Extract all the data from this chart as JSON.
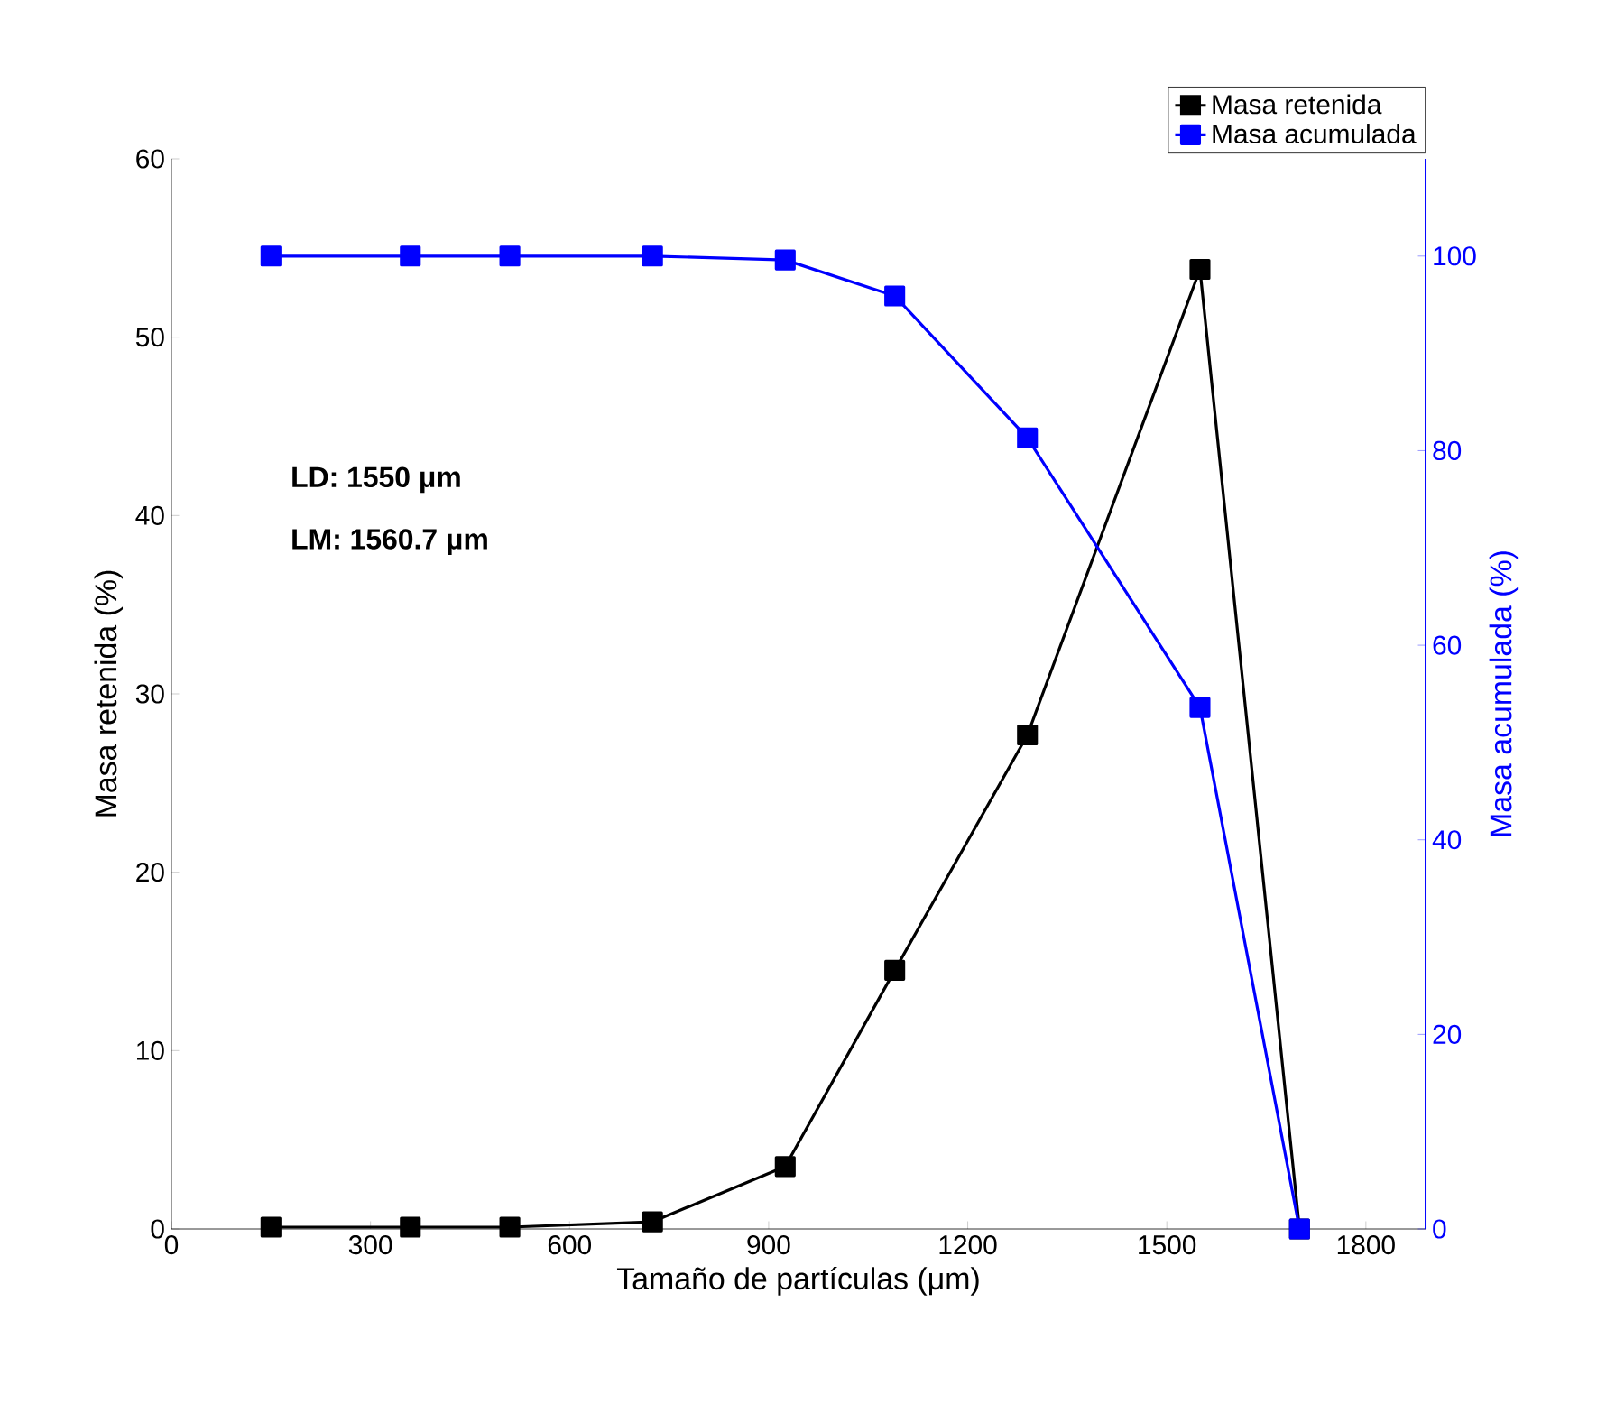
{
  "chart_data": {
    "type": "line",
    "xlabel": "Tamaño de partículas (μm)",
    "ylabel": "Masa retenida (%)",
    "y2label": "Masa acumulada (%)",
    "x": [
      150,
      360,
      510,
      725,
      925,
      1090,
      1290,
      1550,
      1700
    ],
    "series": [
      {
        "name": "Masa retenida",
        "color": "#000000",
        "values": [
          0.1,
          0.1,
          0.1,
          0.4,
          3.5,
          14.5,
          27.7,
          53.8,
          0
        ]
      },
      {
        "name": "Masa acumulada",
        "color": "#0000ff",
        "axis": "y2",
        "values": [
          100,
          100,
          100,
          100,
          99.6,
          95.9,
          81.3,
          53.6,
          0
        ]
      }
    ],
    "xlim": [
      0,
      1890
    ],
    "xticks": [
      0,
      300,
      600,
      900,
      1200,
      1500,
      1800
    ],
    "ylim": [
      0,
      60
    ],
    "yticks": [
      0,
      10,
      20,
      30,
      40,
      50,
      60
    ],
    "y2lim": [
      0,
      110
    ],
    "y2ticks": [
      0,
      20,
      40,
      60,
      80,
      100
    ],
    "annotations": [
      "LD: 1550 μm",
      "LM:  1560.7 μm"
    ],
    "marker": "square",
    "line_style": "solid",
    "legend": "top right",
    "grid": false
  }
}
